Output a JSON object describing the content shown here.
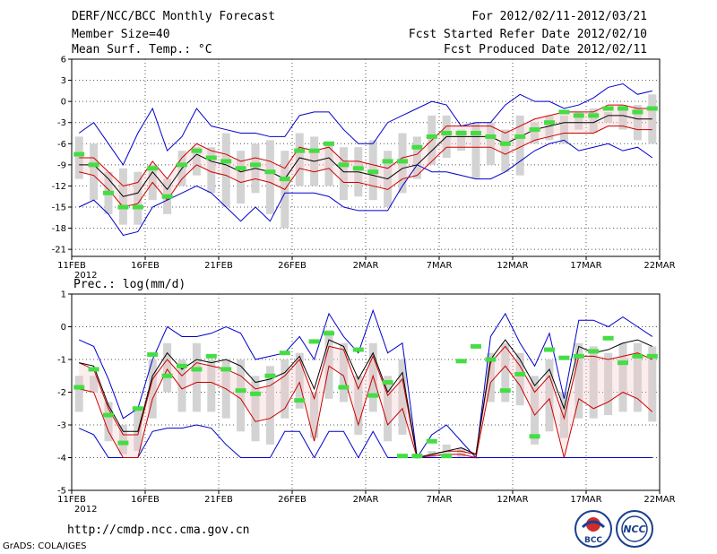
{
  "header": {
    "left": [
      "DERF/NCC/BCC Monthly Forecast",
      "Member Size=40",
      "Mean Surf. Temp.: °C"
    ],
    "right": [
      "For 2012/02/11-2012/03/21",
      "Fcst Started Refer Date 2012/02/10",
      "Fcst Produced Date 2012/02/11"
    ]
  },
  "footer": {
    "url": "http://cmdp.ncc.cma.gov.cn",
    "credit": "GrADS: COLA/IGES",
    "logo_left": "BCC",
    "logo_right": "NCC"
  },
  "colors": {
    "mean": "#000000",
    "std": "#cc0000",
    "minmax": "#0000cc",
    "box": "#d3d3d3",
    "marker": "#44dd44",
    "grid": "#555555"
  },
  "chart_data": [
    {
      "type": "line",
      "title": "Mean Surf. Temp.: °C",
      "ylim": [
        -22,
        6
      ],
      "yticks": [
        6,
        3,
        0,
        -3,
        -6,
        -9,
        -12,
        -15,
        -18,
        -21
      ],
      "xticks": [
        "11FEB",
        "16FEB",
        "21FEB",
        "26FEB",
        "2MAR",
        "7MAR",
        "12MAR",
        "17MAR",
        "22MAR"
      ],
      "xtick_year": "2012",
      "days": 40,
      "series": [
        {
          "name": "mean",
          "values": [
            -9,
            -9,
            -11,
            -13.5,
            -13,
            -10,
            -12.5,
            -9.5,
            -7.5,
            -8.5,
            -9,
            -10,
            -9.5,
            -10,
            -11,
            -8,
            -8.5,
            -8,
            -10,
            -10,
            -10.5,
            -11,
            -9.5,
            -9,
            -7,
            -5,
            -5,
            -5,
            -5,
            -6,
            -5,
            -4,
            -3.5,
            -3,
            -3,
            -3,
            -2,
            -2,
            -2.5,
            -2.5
          ]
        },
        {
          "name": "std_upper",
          "values": [
            -8,
            -8,
            -10,
            -12,
            -11.5,
            -8.5,
            -11,
            -8,
            -6,
            -7,
            -7.5,
            -8.5,
            -8,
            -8.5,
            -9.5,
            -6.5,
            -7,
            -6.5,
            -8.5,
            -8.5,
            -9,
            -9.5,
            -8,
            -7.5,
            -5.5,
            -3.5,
            -3.5,
            -3.5,
            -3.5,
            -4.5,
            -3.5,
            -2.5,
            -2,
            -1.5,
            -1.5,
            -1.5,
            -0.5,
            -0.5,
            -1,
            -1
          ]
        },
        {
          "name": "std_lower",
          "values": [
            -10,
            -10.5,
            -12.5,
            -15,
            -14.5,
            -11.5,
            -14,
            -11,
            -9,
            -10,
            -10.5,
            -11.5,
            -11,
            -11.5,
            -12.5,
            -9.5,
            -10,
            -9.5,
            -11.5,
            -11.5,
            -12,
            -12.5,
            -11,
            -10.5,
            -8.5,
            -6.5,
            -6.5,
            -6.5,
            -6.5,
            -7.5,
            -6.5,
            -5.5,
            -5,
            -4.5,
            -4.5,
            -4.5,
            -3.5,
            -3.5,
            -4,
            -4
          ]
        },
        {
          "name": "max",
          "values": [
            -4.5,
            -3,
            -6,
            -9,
            -4.5,
            -1,
            -7,
            -5,
            -1,
            -3.5,
            -4,
            -4.5,
            -4.5,
            -5,
            -5,
            -2,
            -1.5,
            -1.5,
            -4,
            -6,
            -6,
            -3,
            -2,
            -1,
            0,
            -0.5,
            -3.5,
            -3,
            -3,
            -0.5,
            1,
            0,
            0,
            -1,
            -0.5,
            0.5,
            2,
            2.5,
            1,
            1.5
          ]
        },
        {
          "name": "min",
          "values": [
            -15,
            -14,
            -16,
            -19,
            -18.5,
            -15,
            -14,
            -13,
            -12,
            -13,
            -15,
            -17,
            -15,
            -17,
            -13,
            -13,
            -13,
            -13.5,
            -15,
            -15.5,
            -15.5,
            -15.5,
            -12,
            -9,
            -10,
            -10,
            -10.5,
            -11,
            -11,
            -10,
            -8.5,
            -7,
            -6,
            -5.5,
            -7,
            -6.5,
            -6,
            -7,
            -6.5,
            -8
          ]
        },
        {
          "name": "box_top",
          "values": [
            -5,
            -6,
            -10,
            -9.5,
            -10,
            -9,
            -11,
            -7,
            -6.5,
            -6.5,
            -4.5,
            -7,
            -6,
            -5.5,
            -7,
            -4.5,
            -5,
            -6,
            -6.5,
            -6.5,
            -5.5,
            -7,
            -4.5,
            -5,
            -2,
            -2,
            -4,
            -3,
            -3,
            -4,
            -2,
            -3,
            -2,
            -2,
            -1.5,
            -1,
            -1.5,
            -0.5,
            -0.5,
            1
          ]
        },
        {
          "name": "box_bottom",
          "values": [
            -11,
            -14,
            -16,
            -17.5,
            -17.5,
            -14,
            -16,
            -12,
            -10.5,
            -13,
            -15,
            -14.5,
            -13,
            -16,
            -18,
            -12,
            -12,
            -12,
            -14,
            -13.5,
            -14,
            -15,
            -13,
            -11,
            -9,
            -8,
            -7,
            -11,
            -9,
            -10,
            -10.5,
            -6,
            -5.5,
            -6,
            -4,
            -4.5,
            -3,
            -4,
            -5.5,
            -6
          ]
        },
        {
          "name": "observed",
          "values": [
            -7.5,
            -9,
            -13,
            -15,
            -15,
            -9.5,
            -13.5,
            -9,
            -7,
            -8,
            -8.5,
            -9.5,
            -9,
            -10,
            -11,
            -7,
            -7,
            -6,
            -9,
            -9.5,
            -10,
            -8.5,
            -8.5,
            -6.5,
            -5,
            -4.5,
            -4.5,
            -4.5,
            -5,
            -6,
            -5,
            -4,
            -3,
            -1.5,
            -2,
            -2,
            -1,
            -1,
            -1.5,
            -1
          ]
        }
      ]
    },
    {
      "type": "line",
      "title": "Prec.: log(mm/d)",
      "ylim": [
        -5,
        1
      ],
      "yticks": [
        1,
        0,
        -1,
        -2,
        -3,
        -4,
        -5
      ],
      "xticks": [
        "11FEB",
        "16FEB",
        "21FEB",
        "26FEB",
        "2MAR",
        "7MAR",
        "12MAR",
        "17MAR",
        "22MAR"
      ],
      "xtick_year": "2012",
      "days": 40,
      "series": [
        {
          "name": "mean",
          "values": [
            -1.1,
            -1.2,
            -2.4,
            -3.2,
            -3.2,
            -1.5,
            -0.8,
            -1.3,
            -1,
            -1.1,
            -1,
            -1.2,
            -1.7,
            -1.6,
            -1.4,
            -0.9,
            -1.9,
            -0.4,
            -0.6,
            -1.6,
            -0.8,
            -2,
            -1.4,
            -4,
            -3.9,
            -3.8,
            -3.7,
            -3.9,
            -1,
            -0.4,
            -1,
            -1.8,
            -1.3,
            -2.5,
            -0.6,
            -0.8,
            -0.7,
            -0.5,
            -0.4,
            -0.6
          ]
        },
        {
          "name": "std_upper",
          "values": [
            -1.1,
            -1.3,
            -2.5,
            -3.3,
            -3.3,
            -1.6,
            -1,
            -1.5,
            -1.1,
            -1.2,
            -1.3,
            -1.5,
            -1.9,
            -1.8,
            -1.5,
            -1,
            -2.2,
            -0.6,
            -0.7,
            -1.9,
            -0.9,
            -2.1,
            -1.6,
            -4,
            -3.9,
            -3.8,
            -3.8,
            -3.9,
            -1.1,
            -0.6,
            -1.2,
            -2,
            -1.5,
            -2.8,
            -0.9,
            -0.9,
            -1,
            -0.9,
            -0.8,
            -1
          ]
        },
        {
          "name": "std_lower",
          "values": [
            -1.9,
            -2,
            -3.2,
            -4,
            -4,
            -2.2,
            -1.3,
            -1.9,
            -1.7,
            -1.7,
            -1.9,
            -2.2,
            -2.9,
            -2.8,
            -2.5,
            -1.7,
            -3.5,
            -1.2,
            -1.5,
            -3,
            -1.5,
            -3,
            -2.5,
            -4,
            -3.95,
            -3.9,
            -3.9,
            -4,
            -1.7,
            -1.2,
            -1.8,
            -2.7,
            -2.2,
            -4,
            -2.2,
            -2.5,
            -2.3,
            -2,
            -2.2,
            -2.6
          ]
        },
        {
          "name": "max",
          "values": [
            -0.4,
            -0.6,
            -1.6,
            -2.8,
            -2.5,
            -1,
            0,
            -0.3,
            -0.3,
            -0.2,
            0,
            -0.2,
            -1,
            -0.9,
            -0.8,
            -0.3,
            -1,
            0.4,
            -0.3,
            -0.8,
            0.5,
            -0.8,
            -0.5,
            -4,
            -3.3,
            -3,
            -3.5,
            -4,
            -0.3,
            0.4,
            -0.5,
            -1.2,
            -0.2,
            -2.2,
            0.2,
            0.2,
            0,
            0.3,
            0,
            -0.3
          ]
        },
        {
          "name": "min",
          "values": [
            -3.1,
            -3.3,
            -4,
            -4,
            -4,
            -3.2,
            -3.1,
            -3.1,
            -3,
            -3.1,
            -3.6,
            -4,
            -4,
            -4,
            -3.2,
            -3.2,
            -4,
            -3.2,
            -3.2,
            -4,
            -3.2,
            -4,
            -4,
            -4,
            -4,
            -4,
            -4,
            -4,
            -4,
            -4,
            -4,
            -4,
            -4,
            -4,
            -4,
            -4,
            -4,
            -4,
            -4,
            -4
          ]
        },
        {
          "name": "box_top",
          "values": [
            -1.5,
            -1.5,
            -2.3,
            -3,
            -2.5,
            -1,
            -0.5,
            -1,
            -0.5,
            -1,
            -1,
            -1,
            -1.5,
            -1.2,
            -1,
            -0.8,
            -2,
            -0.1,
            -0.5,
            -1.5,
            -0.5,
            -1.5,
            -1,
            -4,
            -3.8,
            -3.6,
            -3.7,
            -4,
            -0.8,
            -0.5,
            -0.8,
            -1.5,
            -1,
            -2,
            -0.5,
            -0.6,
            -0.8,
            -0.5,
            -0.5,
            -0.6
          ]
        },
        {
          "name": "box_bottom",
          "values": [
            -2.6,
            -2,
            -3.5,
            -3.9,
            -3.8,
            -2.8,
            -2,
            -2.6,
            -2.6,
            -2.6,
            -2.8,
            -3.2,
            -3.5,
            -3.6,
            -2.8,
            -2.5,
            -3.4,
            -2.2,
            -2.3,
            -3.3,
            -2.6,
            -3.5,
            -3.3,
            -4,
            -4,
            -4,
            -4,
            -4,
            -2.3,
            -2.3,
            -2.4,
            -3.6,
            -3.2,
            -3.4,
            -2.8,
            -2.8,
            -2.7,
            -2.6,
            -2.6,
            -2.9
          ]
        },
        {
          "name": "observed",
          "values": [
            -1.85,
            -1.3,
            -2.7,
            -3.55,
            -2.5,
            -0.85,
            -1.5,
            -1.2,
            -1.3,
            -0.9,
            -1.3,
            -1.95,
            -2.05,
            -1.5,
            -0.8,
            -2.25,
            -0.45,
            -0.2,
            -1.85,
            -0.7,
            -2.1,
            -1.7,
            -3.95,
            -3.95,
            -3.5,
            -3.95,
            -1.05,
            -0.6,
            -1,
            -1.95,
            -1.45,
            -3.35,
            -0.7,
            -0.95,
            -0.9,
            -0.75,
            -0.35,
            -1.1,
            -0.9,
            -0.9
          ]
        }
      ]
    }
  ]
}
